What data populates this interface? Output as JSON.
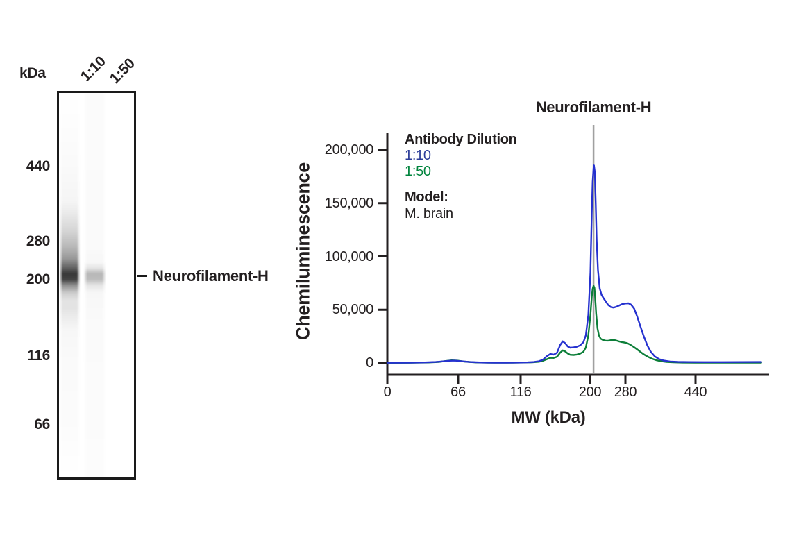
{
  "blot": {
    "unit_label": "kDa",
    "lane_labels": [
      "1:10",
      "1:50"
    ],
    "markers": [
      "440",
      "280",
      "200",
      "116",
      "66"
    ],
    "band_label": "Neurofilament-H"
  },
  "chart": {
    "title": "Neurofilament-H",
    "ylabel": "Chemiluminescence",
    "xlabel": "MW (kDa)",
    "y_tick_labels": [
      "200,000",
      "150,000",
      "100,000",
      "50,000",
      "0"
    ],
    "x_tick_labels": [
      "0",
      "66",
      "116",
      "200",
      "280",
      "440"
    ],
    "legend": {
      "title": "Antibody Dilution",
      "items": [
        {
          "label": "1:10",
          "color": "#2c3d99"
        },
        {
          "label": "1:50",
          "color": "#00843d"
        }
      ],
      "model_label": "Model:",
      "model_value": "M. brain"
    }
  },
  "colors": {
    "axis": "#231f20",
    "annotation_line": "#a0a0a0",
    "series_blue": "#2531cf",
    "series_green": "#0c7e38",
    "legend_blue_text": "#2c3d99",
    "legend_green_text": "#00843d"
  },
  "chart_data": {
    "type": "line",
    "title": "Neurofilament-H",
    "xlabel": "MW (kDa)",
    "ylabel": "Chemiluminescence",
    "x_ticks": [
      0,
      66,
      116,
      200,
      280,
      440
    ],
    "y_ticks": [
      0,
      50000,
      100000,
      150000,
      200000
    ],
    "xlim": [
      0,
      610
    ],
    "ylim": [
      0,
      225000
    ],
    "x_scale_note": "nonlinear capillary-electrophoresis MW axis (tick spacing as rendered)",
    "grid": false,
    "legend_position": "top-left",
    "annotation": {
      "label": "Neurofilament-H",
      "line_x_mw": 208
    },
    "series": [
      {
        "name": "1:50",
        "dilution": "1:50",
        "color": "#0c7e38",
        "points": [
          [
            0,
            100
          ],
          [
            20,
            200
          ],
          [
            38,
            450
          ],
          [
            48,
            1000
          ],
          [
            55,
            1900
          ],
          [
            60,
            2500
          ],
          [
            65,
            2200
          ],
          [
            71,
            1300
          ],
          [
            80,
            550
          ],
          [
            90,
            350
          ],
          [
            100,
            300
          ],
          [
            110,
            350
          ],
          [
            120,
            450
          ],
          [
            130,
            650
          ],
          [
            138,
            1100
          ],
          [
            143,
            2000
          ],
          [
            148,
            3600
          ],
          [
            152,
            4900
          ],
          [
            156,
            4700
          ],
          [
            160,
            5800
          ],
          [
            164,
            9800
          ],
          [
            167,
            11800
          ],
          [
            170,
            10800
          ],
          [
            173,
            8900
          ],
          [
            176,
            7700
          ],
          [
            180,
            7500
          ],
          [
            184,
            7900
          ],
          [
            188,
            8700
          ],
          [
            192,
            10500
          ],
          [
            195,
            14500
          ],
          [
            198,
            26000
          ],
          [
            201,
            45000
          ],
          [
            204,
            62000
          ],
          [
            206,
            69500
          ],
          [
            208,
            72500
          ],
          [
            210,
            70500
          ],
          [
            212,
            60000
          ],
          [
            214,
            46000
          ],
          [
            217,
            32500
          ],
          [
            220,
            26000
          ],
          [
            224,
            22800
          ],
          [
            229,
            21600
          ],
          [
            235,
            21000
          ],
          [
            241,
            20900
          ],
          [
            247,
            21400
          ],
          [
            253,
            21600
          ],
          [
            259,
            21100
          ],
          [
            265,
            20300
          ],
          [
            271,
            19700
          ],
          [
            277,
            19300
          ],
          [
            284,
            18600
          ],
          [
            291,
            17200
          ],
          [
            298,
            15300
          ],
          [
            306,
            13000
          ],
          [
            314,
            10500
          ],
          [
            322,
            8100
          ],
          [
            331,
            5900
          ],
          [
            340,
            4100
          ],
          [
            350,
            2700
          ],
          [
            361,
            1700
          ],
          [
            374,
            1000
          ],
          [
            390,
            600
          ],
          [
            410,
            400
          ],
          [
            440,
            300
          ],
          [
            480,
            250
          ],
          [
            530,
            250
          ],
          [
            590,
            300
          ]
        ]
      },
      {
        "name": "1:10",
        "dilution": "1:10",
        "color": "#2531cf",
        "points": [
          [
            0,
            200
          ],
          [
            20,
            300
          ],
          [
            35,
            500
          ],
          [
            45,
            900
          ],
          [
            52,
            1500
          ],
          [
            58,
            2100
          ],
          [
            63,
            2200
          ],
          [
            68,
            1700
          ],
          [
            75,
            900
          ],
          [
            85,
            450
          ],
          [
            95,
            350
          ],
          [
            105,
            350
          ],
          [
            116,
            450
          ],
          [
            125,
            600
          ],
          [
            132,
            900
          ],
          [
            138,
            1600
          ],
          [
            143,
            3000
          ],
          [
            148,
            6500
          ],
          [
            152,
            8500
          ],
          [
            156,
            7800
          ],
          [
            160,
            9500
          ],
          [
            164,
            17000
          ],
          [
            167,
            20300
          ],
          [
            170,
            18500
          ],
          [
            173,
            15500
          ],
          [
            176,
            14300
          ],
          [
            180,
            14600
          ],
          [
            184,
            15200
          ],
          [
            188,
            16500
          ],
          [
            192,
            19500
          ],
          [
            195,
            26000
          ],
          [
            198,
            45000
          ],
          [
            201,
            85000
          ],
          [
            204,
            140000
          ],
          [
            206,
            170000
          ],
          [
            208,
            183000
          ],
          [
            209,
            185500
          ],
          [
            211,
            179000
          ],
          [
            213,
            149000
          ],
          [
            215,
            115000
          ],
          [
            218,
            87000
          ],
          [
            222,
            70000
          ],
          [
            226,
            64000
          ],
          [
            231,
            60500
          ],
          [
            236,
            57500
          ],
          [
            241,
            54500
          ],
          [
            247,
            52500
          ],
          [
            253,
            52000
          ],
          [
            259,
            52700
          ],
          [
            266,
            54000
          ],
          [
            273,
            55300
          ],
          [
            280,
            55800
          ],
          [
            287,
            56000
          ],
          [
            293,
            54800
          ],
          [
            300,
            51000
          ],
          [
            307,
            43500
          ],
          [
            314,
            34500
          ],
          [
            322,
            25000
          ],
          [
            330,
            16500
          ],
          [
            338,
            10500
          ],
          [
            347,
            6200
          ],
          [
            357,
            3600
          ],
          [
            368,
            2200
          ],
          [
            382,
            1400
          ],
          [
            400,
            1000
          ],
          [
            425,
            850
          ],
          [
            460,
            800
          ],
          [
            500,
            800
          ],
          [
            545,
            850
          ],
          [
            590,
            900
          ]
        ]
      }
    ]
  }
}
